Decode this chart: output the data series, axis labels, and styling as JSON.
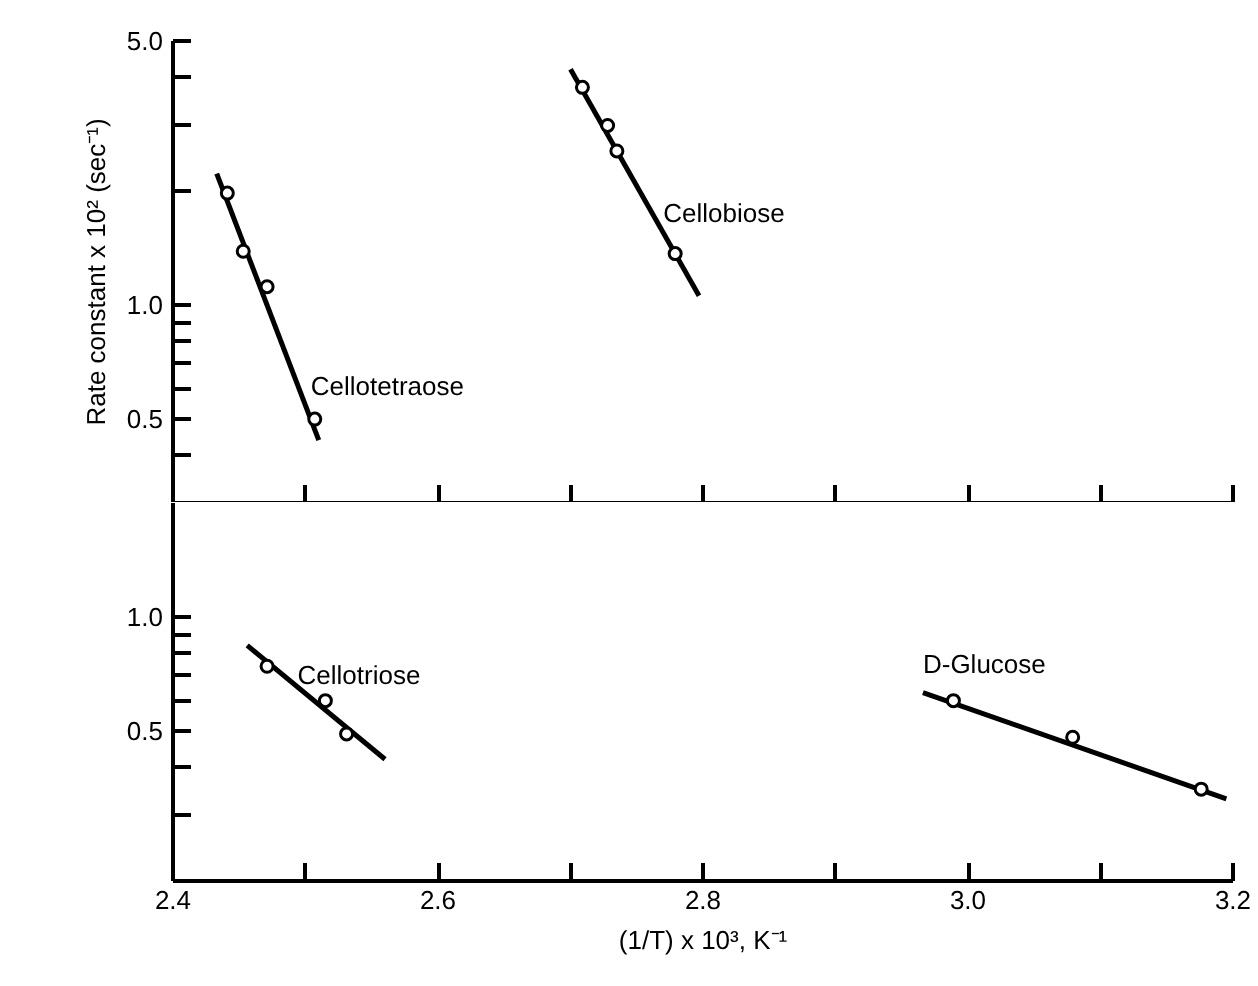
{
  "chart_data": [
    {
      "type": "line",
      "ylabel": "Rate constant x 10² (sec⁻¹)",
      "log": "y",
      "xlim": [
        2.4,
        3.2
      ],
      "ylim": [
        0.3,
        5.0
      ],
      "xticks": [
        {
          "value": 2.4,
          "label": null
        },
        {
          "value": 2.5,
          "label": null
        },
        {
          "value": 2.6,
          "label": null
        },
        {
          "value": 2.7,
          "label": null
        },
        {
          "value": 2.8,
          "label": null
        },
        {
          "value": 2.9,
          "label": null
        },
        {
          "value": 3.0,
          "label": null
        },
        {
          "value": 3.1,
          "label": null
        },
        {
          "value": 3.2,
          "label": null
        }
      ],
      "yticks": [
        {
          "value": 0.4,
          "label": null
        },
        {
          "value": 0.5,
          "label": "0.5"
        },
        {
          "value": 0.6,
          "label": null
        },
        {
          "value": 0.7,
          "label": null
        },
        {
          "value": 0.8,
          "label": null
        },
        {
          "value": 0.9,
          "label": null
        },
        {
          "value": 1.0,
          "label": "1.0"
        },
        {
          "value": 2,
          "label": null
        },
        {
          "value": 3,
          "label": null
        },
        {
          "value": 4,
          "label": null
        },
        {
          "value": 5.0,
          "label": "5.0"
        }
      ],
      "tick_labels": "y",
      "grid": false,
      "line_style": "solid",
      "series": [
        {
          "color": "#000000",
          "x": [
            2.433,
            2.51
          ],
          "values": [
            2.23,
            0.44
          ]
        },
        {
          "type": "scatter",
          "color": "#000000",
          "x": [
            2.441,
            2.453,
            2.471,
            2.507
          ],
          "values": [
            1.98,
            1.39,
            1.12,
            0.5
          ],
          "marker": "circle"
        },
        {
          "color": "#000000",
          "x": [
            2.7,
            2.797
          ],
          "values": [
            4.21,
            1.06
          ]
        },
        {
          "type": "scatter",
          "color": "#000000",
          "x": [
            2.709,
            2.728,
            2.735,
            2.779
          ],
          "values": [
            3.77,
            2.99,
            2.56,
            1.37
          ],
          "marker": "circle"
        }
      ],
      "annotations": [
        {
          "text": "Cellotetraose",
          "x": 2.504,
          "y": 0.61
        },
        {
          "text": "Cellobiose",
          "x": 2.77,
          "y": 1.75
        }
      ]
    },
    {
      "type": "line",
      "xlabel": "(1/T) x 10³, K⁻¹",
      "log": "y",
      "xlim": [
        2.4,
        3.2
      ],
      "ylim": [
        0.2,
        2.0
      ],
      "xticks": [
        2.4,
        {
          "value": 2.5,
          "label": null
        },
        2.6,
        {
          "value": 2.7,
          "label": null
        },
        2.8,
        {
          "value": 2.9,
          "label": null
        },
        {
          "value": 3.0,
          "label": "3.0"
        },
        {
          "value": 3.1,
          "label": null
        },
        3.2
      ],
      "yticks": [
        {
          "value": 0.3,
          "label": null
        },
        {
          "value": 0.4,
          "label": null
        },
        {
          "value": 0.5,
          "label": "0.5"
        },
        {
          "value": 0.6,
          "label": null
        },
        {
          "value": 0.7,
          "label": null
        },
        {
          "value": 0.8,
          "label": null
        },
        {
          "value": 0.9,
          "label": null
        },
        {
          "value": 1.0,
          "label": "1.0"
        }
      ],
      "grid": false,
      "line_style": "solid",
      "series": [
        {
          "color": "#000000",
          "x": [
            2.456,
            2.56
          ],
          "values": [
            0.84,
            0.42
          ]
        },
        {
          "type": "scatter",
          "color": "#000000",
          "x": [
            2.471,
            2.515,
            2.531
          ],
          "values": [
            0.74,
            0.6,
            0.49
          ],
          "marker": "circle"
        },
        {
          "name": "D-Glucose",
          "color": "#000000",
          "x": [
            2.966,
            3.195
          ],
          "values": [
            0.63,
            0.33
          ]
        },
        {
          "type": "scatter",
          "color": "#000000",
          "x": [
            2.989,
            3.079,
            3.176
          ],
          "values": [
            0.6,
            0.48,
            0.35
          ],
          "marker": "circle"
        }
      ],
      "annotations": [
        {
          "text": "Cellotriose",
          "x": 2.494,
          "y": 0.7
        }
      ]
    }
  ]
}
